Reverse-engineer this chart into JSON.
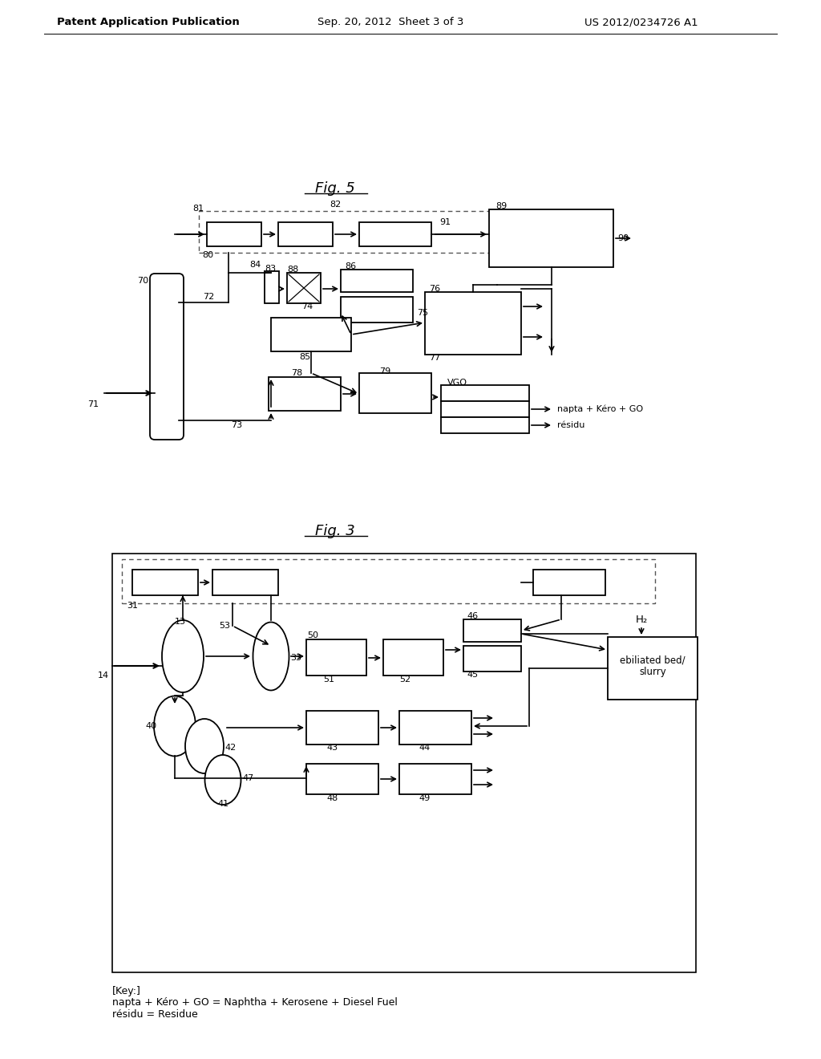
{
  "header_left": "Patent Application Publication",
  "header_center": "Sep. 20, 2012  Sheet 3 of 3",
  "header_right": "US 2012/0234726 A1",
  "fig5_title": "Fig. 5",
  "fig3_title": "Fig. 3",
  "key_line1": "[Key:]",
  "key_line2": "napta + Kéro + GO = Naphtha + Kerosene + Diesel Fuel",
  "key_line3": "résidu = Residue",
  "bg_color": "#ffffff"
}
